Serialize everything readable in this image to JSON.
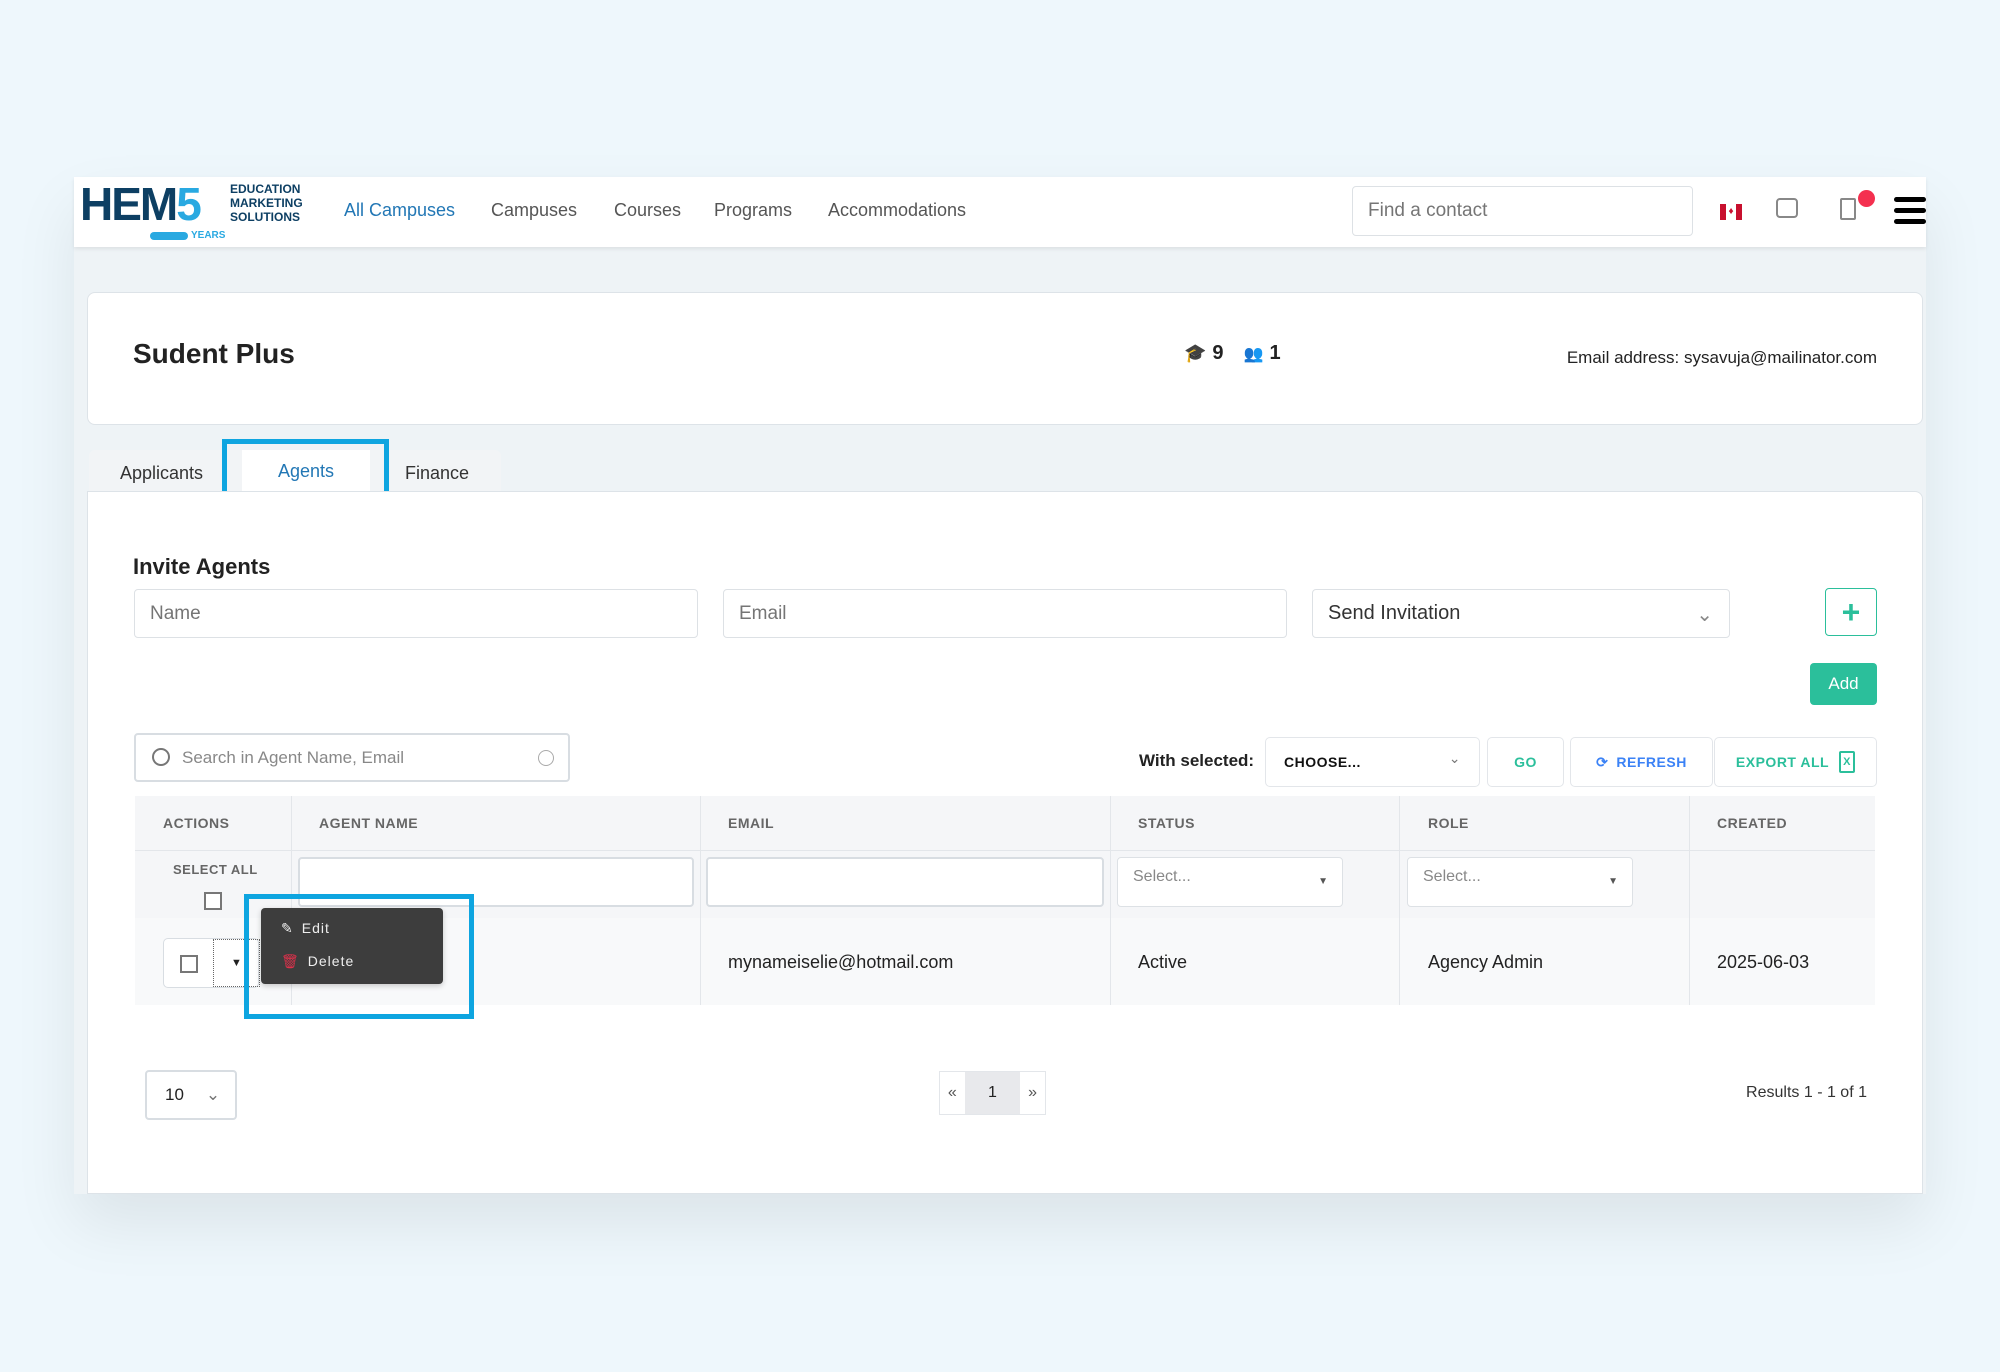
{
  "header": {
    "logo_text": "HEM5",
    "logo_sub": [
      "EDUCATION",
      "MARKETING",
      "SOLUTIONS"
    ],
    "logo_years": "YEARS",
    "nav": [
      {
        "label": "All Campuses",
        "active": true
      },
      {
        "label": "Campuses"
      },
      {
        "label": "Courses"
      },
      {
        "label": "Programs"
      },
      {
        "label": "Accommodations"
      }
    ],
    "search_placeholder": "Find a contact",
    "notification_dot_color": "#f4304f"
  },
  "profile": {
    "title": "Sudent Plus",
    "students_count": "9",
    "agents_count": "1",
    "email_text": "Email address: sysavuja@mailinator.com"
  },
  "tabs": [
    {
      "label": "Applicants"
    },
    {
      "label": "Agents",
      "active": true
    },
    {
      "label": "Finance"
    }
  ],
  "invite": {
    "title": "Invite Agents",
    "name_placeholder": "Name",
    "email_placeholder": "Email",
    "type_value": "Send Invitation",
    "add_label": "Add",
    "accent": "#2bbf9b"
  },
  "toolbar": {
    "search_placeholder": "Search in Agent Name, Email",
    "with_selected": "With selected:",
    "choose": "CHOOSE...",
    "go": "GO",
    "refresh": "REFRESH",
    "export": "EXPORT ALL"
  },
  "table": {
    "headers": [
      "ACTIONS",
      "AGENT NAME",
      "EMAIL",
      "STATUS",
      "ROLE",
      "CREATED"
    ],
    "select_all": "SELECT ALL",
    "status_filter": "Select...",
    "role_filter": "Select...",
    "rows": [
      {
        "agent_name": "",
        "email": "mynameiselie@hotmail.com",
        "status": "Active",
        "role": "Agency Admin",
        "created": "2025-06-03"
      }
    ]
  },
  "row_menu": {
    "edit": "Edit",
    "delete": "Delete"
  },
  "footer": {
    "page_size": "10",
    "prev": "«",
    "page": "1",
    "next": "»",
    "results": "Results 1 - 1 of 1"
  },
  "highlight_color": "#0ea5e0"
}
